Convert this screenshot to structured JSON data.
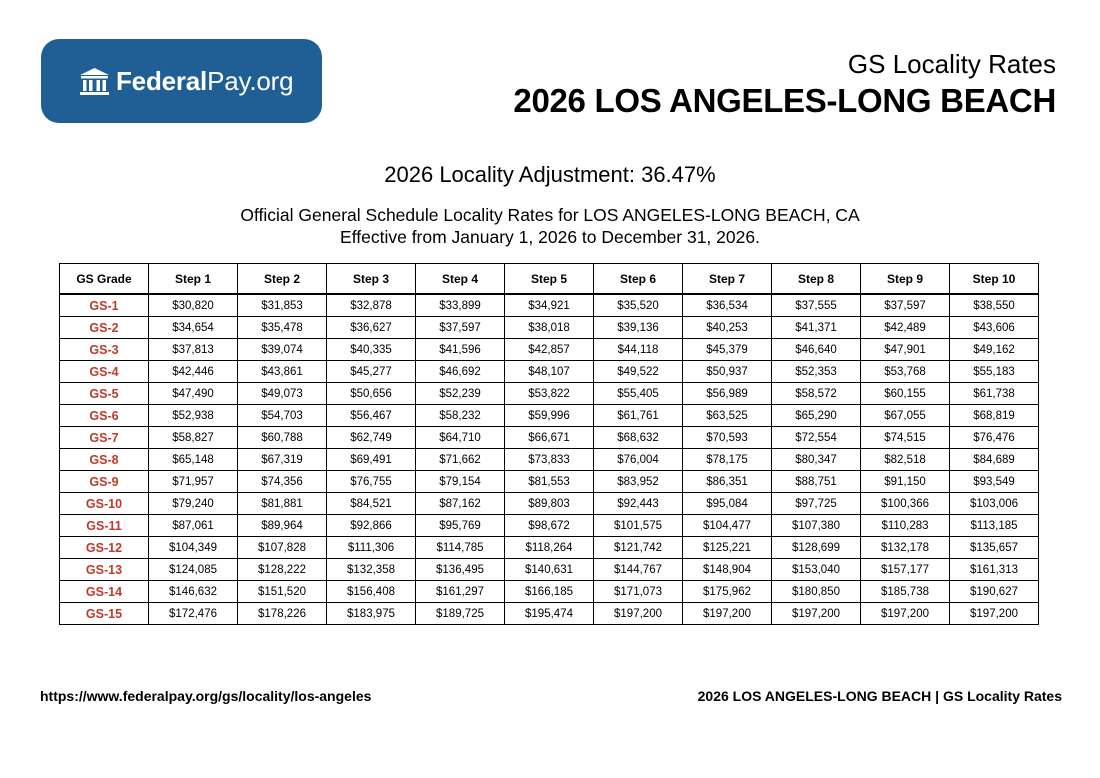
{
  "logo": {
    "brand_bold": "Federal",
    "brand_rest": "Pay.org",
    "icon": "government-building-icon"
  },
  "header": {
    "subtitle": "GS Locality Rates",
    "title": "2026 LOS ANGELES-LONG BEACH"
  },
  "adjustment": "2026 Locality Adjustment: 36.47%",
  "description": {
    "line1": "Official General Schedule Locality Rates for LOS ANGELES-LONG BEACH, CA",
    "line2": "Effective from January 1, 2026 to December 31, 2026."
  },
  "table": {
    "headers": [
      "GS Grade",
      "Step 1",
      "Step 2",
      "Step 3",
      "Step 4",
      "Step 5",
      "Step 6",
      "Step 7",
      "Step 8",
      "Step 9",
      "Step 10"
    ],
    "rows": [
      [
        "GS-1",
        "$30,820",
        "$31,853",
        "$32,878",
        "$33,899",
        "$34,921",
        "$35,520",
        "$36,534",
        "$37,555",
        "$37,597",
        "$38,550"
      ],
      [
        "GS-2",
        "$34,654",
        "$35,478",
        "$36,627",
        "$37,597",
        "$38,018",
        "$39,136",
        "$40,253",
        "$41,371",
        "$42,489",
        "$43,606"
      ],
      [
        "GS-3",
        "$37,813",
        "$39,074",
        "$40,335",
        "$41,596",
        "$42,857",
        "$44,118",
        "$45,379",
        "$46,640",
        "$47,901",
        "$49,162"
      ],
      [
        "GS-4",
        "$42,446",
        "$43,861",
        "$45,277",
        "$46,692",
        "$48,107",
        "$49,522",
        "$50,937",
        "$52,353",
        "$53,768",
        "$55,183"
      ],
      [
        "GS-5",
        "$47,490",
        "$49,073",
        "$50,656",
        "$52,239",
        "$53,822",
        "$55,405",
        "$56,989",
        "$58,572",
        "$60,155",
        "$61,738"
      ],
      [
        "GS-6",
        "$52,938",
        "$54,703",
        "$56,467",
        "$58,232",
        "$59,996",
        "$61,761",
        "$63,525",
        "$65,290",
        "$67,055",
        "$68,819"
      ],
      [
        "GS-7",
        "$58,827",
        "$60,788",
        "$62,749",
        "$64,710",
        "$66,671",
        "$68,632",
        "$70,593",
        "$72,554",
        "$74,515",
        "$76,476"
      ],
      [
        "GS-8",
        "$65,148",
        "$67,319",
        "$69,491",
        "$71,662",
        "$73,833",
        "$76,004",
        "$78,175",
        "$80,347",
        "$82,518",
        "$84,689"
      ],
      [
        "GS-9",
        "$71,957",
        "$74,356",
        "$76,755",
        "$79,154",
        "$81,553",
        "$83,952",
        "$86,351",
        "$88,751",
        "$91,150",
        "$93,549"
      ],
      [
        "GS-10",
        "$79,240",
        "$81,881",
        "$84,521",
        "$87,162",
        "$89,803",
        "$92,443",
        "$95,084",
        "$97,725",
        "$100,366",
        "$103,006"
      ],
      [
        "GS-11",
        "$87,061",
        "$89,964",
        "$92,866",
        "$95,769",
        "$98,672",
        "$101,575",
        "$104,477",
        "$107,380",
        "$110,283",
        "$113,185"
      ],
      [
        "GS-12",
        "$104,349",
        "$107,828",
        "$111,306",
        "$114,785",
        "$118,264",
        "$121,742",
        "$125,221",
        "$128,699",
        "$132,178",
        "$135,657"
      ],
      [
        "GS-13",
        "$124,085",
        "$128,222",
        "$132,358",
        "$136,495",
        "$140,631",
        "$144,767",
        "$148,904",
        "$153,040",
        "$157,177",
        "$161,313"
      ],
      [
        "GS-14",
        "$146,632",
        "$151,520",
        "$156,408",
        "$161,297",
        "$166,185",
        "$171,073",
        "$175,962",
        "$180,850",
        "$185,738",
        "$190,627"
      ],
      [
        "GS-15",
        "$172,476",
        "$178,226",
        "$183,975",
        "$189,725",
        "$195,474",
        "$197,200",
        "$197,200",
        "$197,200",
        "$197,200",
        "$197,200"
      ]
    ]
  },
  "footer": {
    "url": "https://www.federalpay.org/gs/locality/los-angeles",
    "label": "2026 LOS ANGELES-LONG BEACH | GS Locality Rates"
  },
  "colors": {
    "logo_bg": "#1f5f96",
    "grade_text": "#c0392b"
  }
}
